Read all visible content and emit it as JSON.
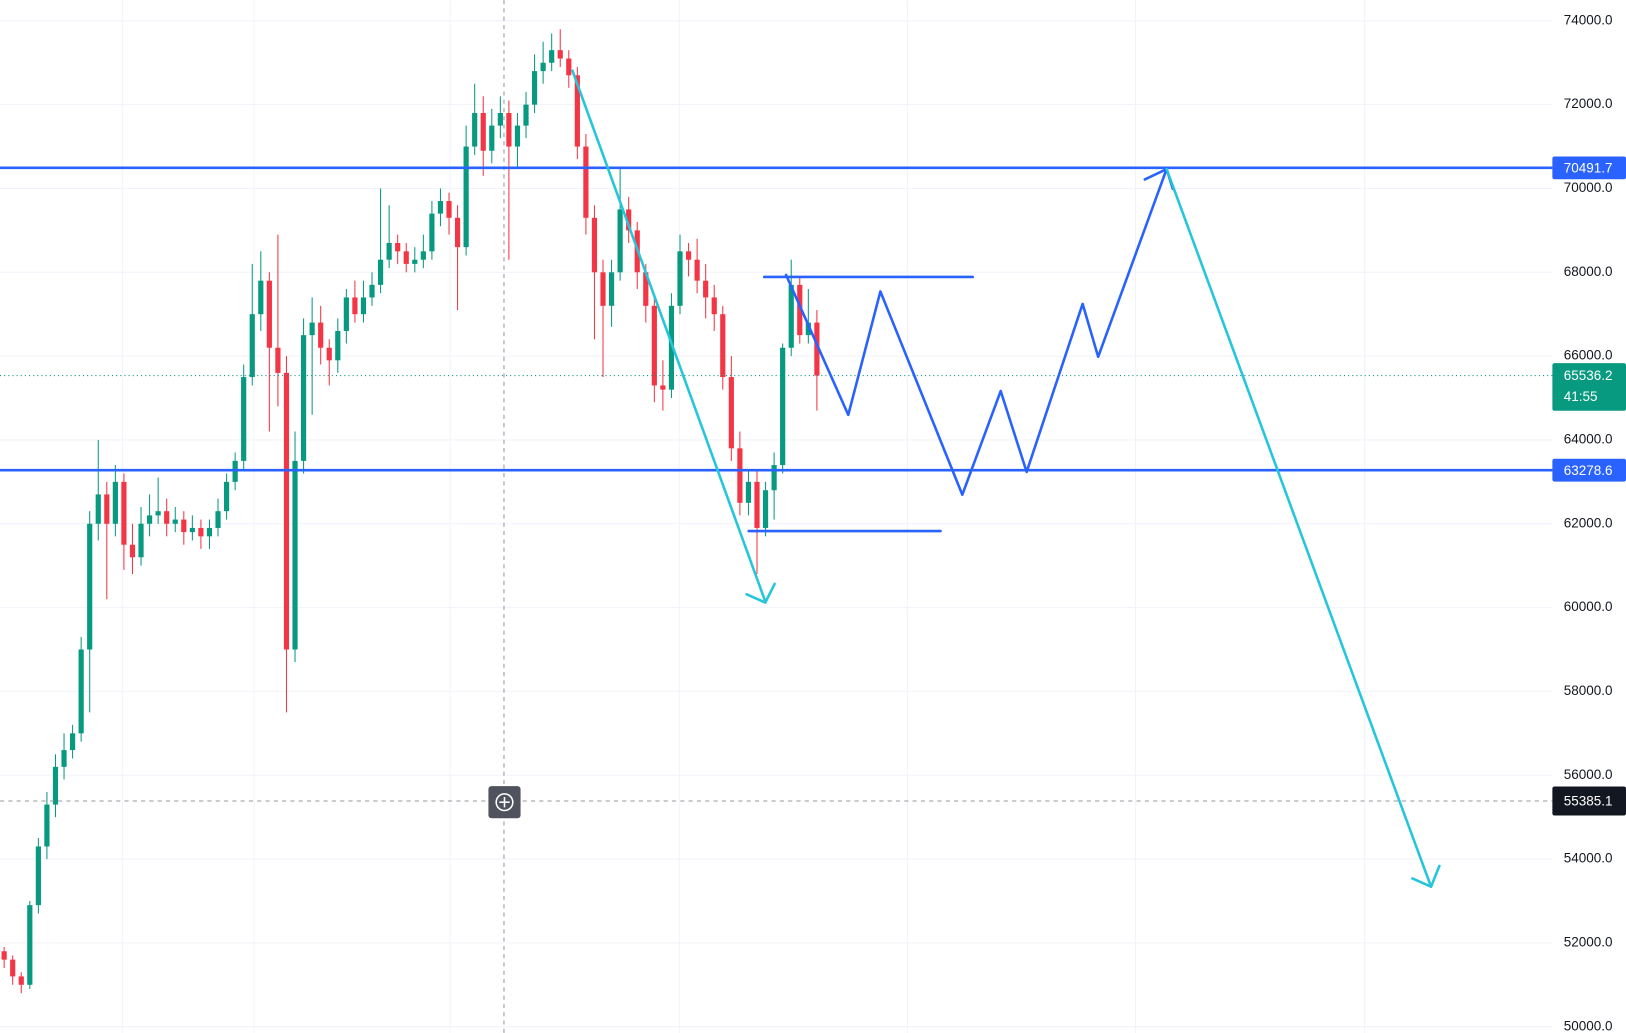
{
  "chart_data": {
    "type": "candlestick",
    "up_color": "#089981",
    "down_color": "#f23645",
    "open": [
      51800,
      51600,
      51200,
      51000,
      52900,
      54300,
      55300,
      56200,
      56600,
      57000,
      59000,
      62000,
      62700,
      62000,
      63000,
      61500,
      61200,
      62000,
      62200,
      62300,
      62000,
      62100,
      61800,
      61900,
      61700,
      61900,
      62300,
      63000,
      63500,
      65500,
      67000,
      67800,
      66200,
      65600,
      59000,
      63500,
      66500,
      66800,
      66200,
      65900,
      66600,
      67400,
      67000,
      67400,
      67700,
      68300,
      68700,
      68500,
      68200,
      68300,
      68500,
      69400,
      69700,
      69300,
      68600,
      71000,
      71800,
      70900,
      71500,
      71800,
      71000,
      71500,
      72000,
      72800,
      73000,
      73300,
      73100,
      72700,
      71000,
      69300,
      68000,
      67200,
      68000,
      69500,
      69000,
      68000,
      67200,
      65300,
      65200,
      67200,
      68500,
      68300,
      67800,
      67400,
      67000,
      65500,
      63800,
      62500,
      63000,
      61900,
      62800,
      63400,
      66200,
      67700,
      66500,
      66800
    ],
    "high": [
      51900,
      51700,
      51300,
      53000,
      54500,
      55600,
      56500,
      57000,
      57200,
      59300,
      62300,
      64000,
      63000,
      63400,
      63200,
      62000,
      62400,
      62700,
      63100,
      62600,
      62400,
      62300,
      62200,
      62100,
      62100,
      62600,
      63200,
      63700,
      65800,
      68200,
      68500,
      68000,
      68900,
      66000,
      64200,
      66900,
      67400,
      67200,
      66400,
      66900,
      67600,
      67800,
      67800,
      68000,
      70000,
      69600,
      68900,
      68700,
      68600,
      68900,
      69700,
      70000,
      69900,
      69600,
      71500,
      72500,
      72200,
      71900,
      72200,
      72100,
      71800,
      72300,
      73200,
      73500,
      73700,
      73800,
      73300,
      72900,
      71300,
      69600,
      68300,
      68300,
      70500,
      69800,
      69200,
      68200,
      67400,
      65900,
      67500,
      68900,
      68700,
      68800,
      68200,
      67700,
      67200,
      66000,
      64200,
      63300,
      63300,
      63000,
      63700,
      66300,
      68300,
      67900,
      67600,
      67100
    ],
    "low": [
      51400,
      51000,
      50800,
      50900,
      52700,
      54000,
      55000,
      55900,
      56400,
      56800,
      57500,
      61600,
      60200,
      61700,
      60900,
      60800,
      61000,
      61700,
      62000,
      61700,
      61800,
      61500,
      61600,
      61400,
      61400,
      61700,
      62100,
      62800,
      63300,
      65300,
      66600,
      64200,
      64800,
      57500,
      58700,
      63200,
      64600,
      65800,
      65300,
      65600,
      66300,
      66800,
      66800,
      67200,
      67500,
      68100,
      68200,
      68000,
      68000,
      68100,
      68300,
      69100,
      68900,
      67100,
      68400,
      70800,
      70300,
      70600,
      71200,
      68300,
      70500,
      71200,
      71800,
      72500,
      72800,
      72900,
      72400,
      70700,
      68900,
      66400,
      65500,
      66700,
      67800,
      68700,
      67600,
      66800,
      64900,
      64700,
      65000,
      67000,
      67900,
      67500,
      66900,
      66600,
      65200,
      63500,
      62200,
      62200,
      60800,
      61700,
      62100,
      63200,
      66000,
      66300,
      66300,
      64700
    ],
    "close": [
      51600,
      51200,
      51000,
      52900,
      54300,
      55300,
      56200,
      56600,
      57000,
      59000,
      62000,
      62700,
      62000,
      63000,
      61500,
      61200,
      62000,
      62200,
      62300,
      62000,
      62100,
      61800,
      61900,
      61700,
      61900,
      62300,
      63000,
      63500,
      65500,
      67000,
      67800,
      66200,
      65600,
      59000,
      63500,
      66500,
      66800,
      66200,
      65900,
      66600,
      67400,
      67000,
      67400,
      67700,
      68300,
      68700,
      68500,
      68200,
      68300,
      68500,
      69400,
      69700,
      69300,
      68600,
      71000,
      71800,
      70900,
      71500,
      71800,
      71000,
      71500,
      72000,
      72800,
      73000,
      73300,
      73100,
      72700,
      71000,
      69300,
      68000,
      67200,
      68000,
      69500,
      69000,
      68000,
      67200,
      65300,
      65200,
      67200,
      68500,
      68300,
      67800,
      67400,
      67000,
      65500,
      63800,
      62500,
      63000,
      61900,
      62800,
      63400,
      66200,
      67700,
      66500,
      66800,
      65536.2
    ],
    "ylim": [
      50000,
      74000
    ],
    "yticks": [
      {
        "value": 50000,
        "label": "50000.0"
      },
      {
        "value": 52000,
        "label": "52000.0"
      },
      {
        "value": 54000,
        "label": "54000.0"
      },
      {
        "value": 56000,
        "label": "56000.0"
      },
      {
        "value": 58000,
        "label": "58000.0"
      },
      {
        "value": 60000,
        "label": "60000.0"
      },
      {
        "value": 62000,
        "label": "62000.0"
      },
      {
        "value": 64000,
        "label": "64000.0"
      },
      {
        "value": 66000,
        "label": "66000.0"
      },
      {
        "value": 68000,
        "label": "68000.0"
      },
      {
        "value": 70000,
        "label": "70000.0"
      },
      {
        "value": 72000,
        "label": "72000.0"
      },
      {
        "value": 74000,
        "label": "74000.0"
      }
    ],
    "grid": true,
    "price_lines": [
      70491.7,
      63278.6
    ],
    "price_line_color": "#2962ff",
    "last_price": 65536.2,
    "countdown": "41:55",
    "crosshair_price": 55385.1
  }
}
